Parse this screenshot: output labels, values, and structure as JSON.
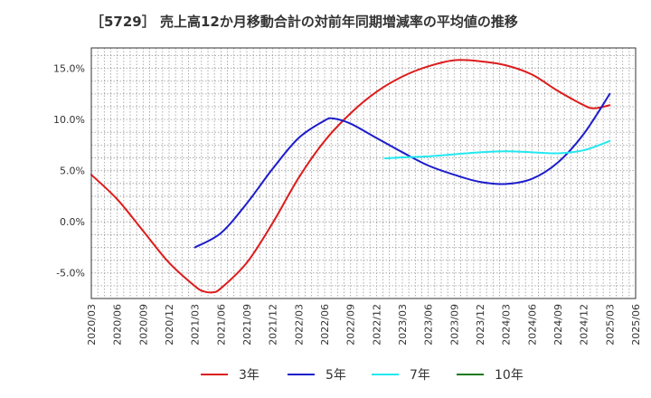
{
  "chart_data": {
    "type": "line",
    "title": "［5729］ 売上高12か月移動合計の対前年同期増減率の平均値の推移",
    "xlabel": "",
    "ylabel": "",
    "ylim": [
      -7.5,
      17.0
    ],
    "y_ticks": [
      -5.0,
      0.0,
      5.0,
      10.0,
      15.0
    ],
    "y_tick_labels": [
      "-5.0%",
      "0.0%",
      "5.0%",
      "10.0%",
      "15.0%"
    ],
    "x_tick_labels": [
      "2020/03",
      "2020/06",
      "2020/09",
      "2020/12",
      "2021/03",
      "2021/06",
      "2021/09",
      "2021/12",
      "2022/03",
      "2022/06",
      "2022/09",
      "2022/12",
      "2023/03",
      "2023/06",
      "2023/09",
      "2023/12",
      "2024/03",
      "2024/06",
      "2024/09",
      "2024/12",
      "2025/03",
      "2025/06"
    ],
    "grid": true,
    "legend_position": "bottom",
    "series": [
      {
        "name": "3年",
        "color": "#dd1c1c",
        "x": [
          "2020/03",
          "2020/06",
          "2020/09",
          "2020/12",
          "2021/03",
          "2021/04",
          "2021/05",
          "2021/06",
          "2021/09",
          "2021/12",
          "2022/03",
          "2022/06",
          "2022/09",
          "2022/12",
          "2023/03",
          "2023/06",
          "2023/09",
          "2023/12",
          "2024/03",
          "2024/06",
          "2024/09",
          "2024/12",
          "2025/01",
          "2025/02",
          "2025/03"
        ],
        "values": [
          4.6,
          2.2,
          -0.9,
          -4.0,
          -6.3,
          -6.8,
          -6.9,
          -6.5,
          -4.0,
          -0.1,
          4.3,
          7.9,
          10.6,
          12.7,
          14.2,
          15.2,
          15.8,
          15.7,
          15.3,
          14.4,
          12.8,
          11.4,
          11.1,
          11.2,
          11.4
        ]
      },
      {
        "name": "5年",
        "color": "#1c1ccc",
        "x": [
          "2021/03",
          "2021/06",
          "2021/09",
          "2021/12",
          "2022/03",
          "2022/06",
          "2022/07",
          "2022/09",
          "2022/12",
          "2023/03",
          "2023/06",
          "2023/09",
          "2023/12",
          "2024/03",
          "2024/06",
          "2024/09",
          "2024/12",
          "2025/03"
        ],
        "values": [
          -2.5,
          -1.1,
          1.8,
          5.2,
          8.2,
          9.9,
          10.1,
          9.6,
          8.2,
          6.8,
          5.5,
          4.6,
          3.9,
          3.7,
          4.2,
          5.8,
          8.6,
          12.5
        ]
      },
      {
        "name": "7年",
        "color": "#22e8f0",
        "x": [
          "2023/01",
          "2023/03",
          "2023/06",
          "2023/09",
          "2023/12",
          "2024/03",
          "2024/06",
          "2024/09",
          "2024/12",
          "2025/03"
        ],
        "values": [
          6.2,
          6.3,
          6.4,
          6.6,
          6.8,
          6.9,
          6.8,
          6.7,
          7.0,
          7.9
        ]
      },
      {
        "name": "10年",
        "color": "#1c7a1c",
        "x": [],
        "values": []
      }
    ]
  }
}
